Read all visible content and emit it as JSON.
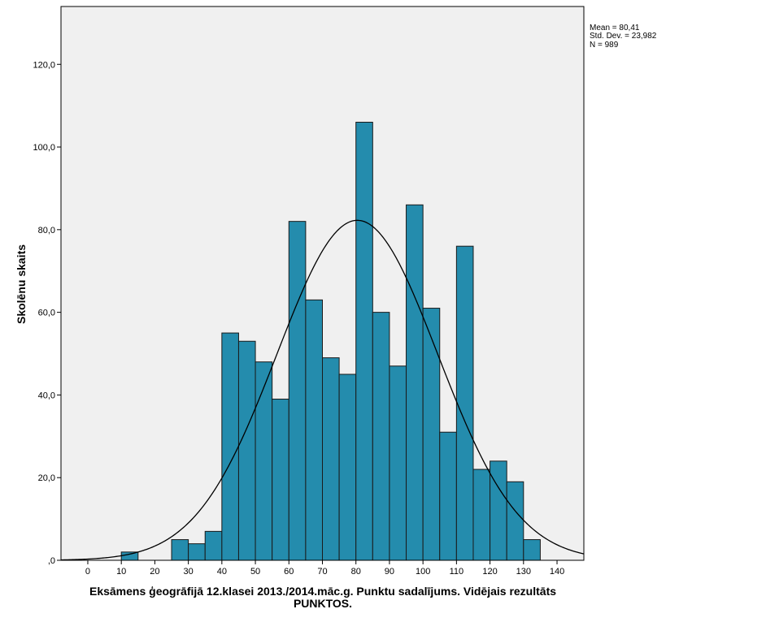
{
  "chart_data": {
    "type": "histogram",
    "title": "",
    "xlabel_lines": [
      "Eksāmens ģeogrāfijā 12.klasei 2013./2014.māc.g. Punktu sadalījums. Vidējais rezultāts",
      "PUNKTOS."
    ],
    "ylabel": "Skolēnu skaits",
    "xlim": [
      -8,
      148
    ],
    "ylim": [
      0,
      134
    ],
    "x_ticks": [
      0,
      10,
      20,
      30,
      40,
      50,
      60,
      70,
      80,
      90,
      100,
      110,
      120,
      130,
      140
    ],
    "x_tick_labels": [
      "0",
      "10",
      "20",
      "30",
      "40",
      "50",
      "60",
      "70",
      "80",
      "90",
      "100",
      "110",
      "120",
      "130",
      "140"
    ],
    "y_ticks": [
      0,
      20,
      40,
      60,
      80,
      100,
      120
    ],
    "y_tick_labels": [
      ",0",
      "20,0",
      "40,0",
      "60,0",
      "80,0",
      "100,0",
      "120,0"
    ],
    "bin_width": 5,
    "bins": [
      {
        "start": 10,
        "count": 2
      },
      {
        "start": 25,
        "count": 5
      },
      {
        "start": 30,
        "count": 4
      },
      {
        "start": 35,
        "count": 7
      },
      {
        "start": 40,
        "count": 55
      },
      {
        "start": 45,
        "count": 53
      },
      {
        "start": 50,
        "count": 48
      },
      {
        "start": 55,
        "count": 39
      },
      {
        "start": 60,
        "count": 82
      },
      {
        "start": 65,
        "count": 63
      },
      {
        "start": 70,
        "count": 49
      },
      {
        "start": 75,
        "count": 45
      },
      {
        "start": 80,
        "count": 106
      },
      {
        "start": 85,
        "count": 60
      },
      {
        "start": 90,
        "count": 47
      },
      {
        "start": 95,
        "count": 86
      },
      {
        "start": 100,
        "count": 61
      },
      {
        "start": 105,
        "count": 31
      },
      {
        "start": 110,
        "count": 76
      },
      {
        "start": 115,
        "count": 22
      },
      {
        "start": 120,
        "count": 24
      },
      {
        "start": 125,
        "count": 19
      },
      {
        "start": 130,
        "count": 5
      }
    ],
    "normal_curve": {
      "mean": 80.41,
      "std": 23.982,
      "n": 989
    },
    "stats_lines": [
      "Mean = 80,41",
      "Std. Dev. = 23,982",
      "N = 989"
    ],
    "colors": {
      "bar_fill": "#248CAD",
      "bar_stroke": "#1A1A1A",
      "plot_bg": "#F0F0F0",
      "axis": "#000000",
      "curve": "#000000"
    }
  }
}
